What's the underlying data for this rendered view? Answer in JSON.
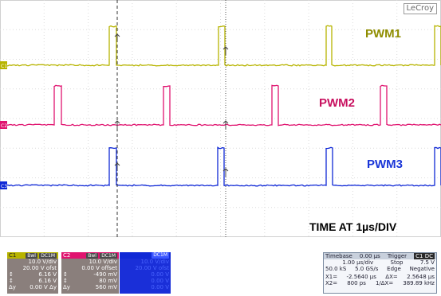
{
  "brand": "LeCroy",
  "channels": [
    {
      "id": "C1",
      "label": "PWM1",
      "color": "#b7b400",
      "trace_label": "C1"
    },
    {
      "id": "C2",
      "label": "PWM2",
      "color": "#e0136f",
      "trace_label": "C2"
    },
    {
      "id": "C3",
      "label": "PWM3",
      "color": "#1029d6",
      "trace_label": "C3"
    }
  ],
  "time_label": "TIME AT 1µs/DIV",
  "panels": {
    "c1": {
      "title": "C1",
      "tags": [
        "Bwl",
        "DC1M"
      ],
      "rows": [
        [
          "",
          "10.0 V/div"
        ],
        [
          "",
          "20.00 V ofst"
        ],
        [
          "↕",
          "6.16 V"
        ],
        [
          "↕",
          "6.16 V"
        ],
        [
          "Δy",
          "0.00 V Δy"
        ]
      ]
    },
    "c2": {
      "title": "C2",
      "tags": [
        "Bwl",
        "DC1M"
      ],
      "rows": [
        [
          "",
          "10.0 V/div"
        ],
        [
          "",
          "0.00 V offset"
        ],
        [
          "↕",
          "-490 mV"
        ],
        [
          "↕",
          "80 mV"
        ],
        [
          "Δy",
          "560 mV"
        ]
      ]
    },
    "c3": {
      "title": "C3",
      "tags": [
        "DC1M"
      ],
      "rows": [
        [
          "",
          "10.0 V/div"
        ],
        [
          "",
          "20.00 V ofst"
        ],
        [
          "",
          "0.00 V"
        ],
        [
          "",
          "0.00 V"
        ],
        [
          "",
          "0.00 V"
        ]
      ]
    }
  },
  "timebase": {
    "header": [
      "Timebase",
      "0.00 µs",
      "Trigger",
      "C1 DC"
    ],
    "rows": [
      [
        "",
        "1.00 µs/div",
        "Stop",
        "7.5 V"
      ],
      [
        "50.0 kS",
        "5.0 GS/s",
        "Edge",
        "Negative"
      ]
    ],
    "cursor_rows": [
      [
        "X1=",
        "-2.5640 µs",
        "ΔX=",
        "2.5648 µs"
      ],
      [
        "X2=",
        "800 ps",
        "1/ΔX=",
        "389.89 kHz"
      ]
    ]
  }
}
